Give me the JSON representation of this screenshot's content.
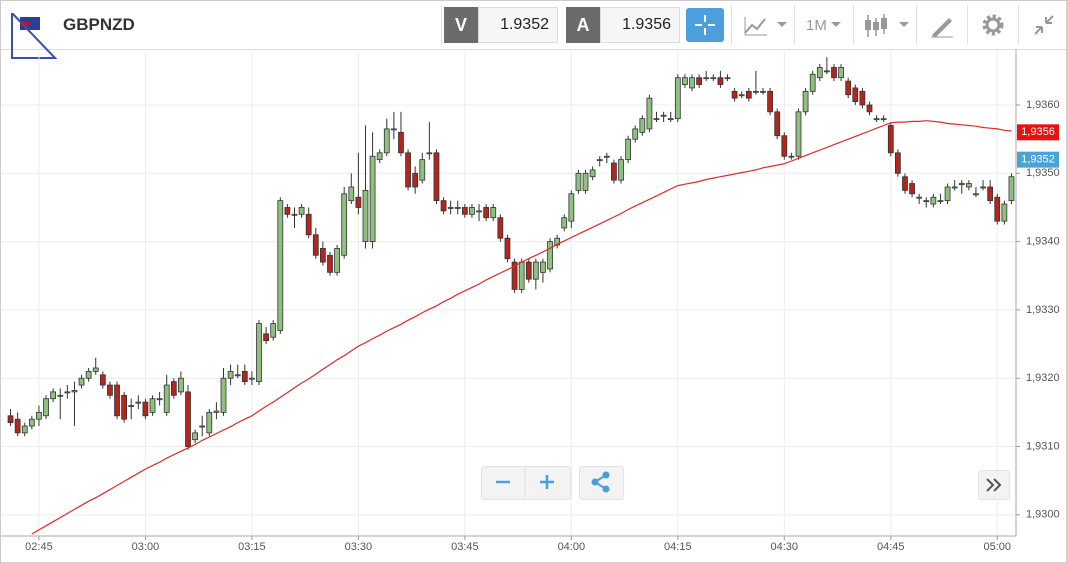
{
  "toolbar": {
    "symbol": "GBPNZD",
    "sell_label": "V",
    "sell_price": "1.9352",
    "buy_label": "A",
    "buy_price": "1.9356",
    "timeframe": "1M"
  },
  "chart_data": {
    "type": "candlestick",
    "categories": [
      null,
      null,
      null,
      null,
      "02:45",
      null,
      null,
      null,
      null,
      null,
      null,
      null,
      null,
      null,
      null,
      null,
      null,
      null,
      null,
      "03:00",
      null,
      null,
      null,
      null,
      null,
      null,
      null,
      null,
      null,
      null,
      null,
      null,
      null,
      null,
      "03:15",
      null,
      null,
      null,
      null,
      null,
      null,
      null,
      null,
      null,
      null,
      null,
      null,
      null,
      null,
      "03:30",
      null,
      null,
      null,
      null,
      null,
      null,
      null,
      null,
      null,
      null,
      null,
      null,
      null,
      null,
      "03:45",
      null,
      null,
      null,
      null,
      null,
      null,
      null,
      null,
      null,
      null,
      null,
      null,
      null,
      null,
      "04:00",
      null,
      null,
      null,
      null,
      null,
      null,
      null,
      null,
      null,
      null,
      null,
      null,
      null,
      null,
      "04:15",
      null,
      null,
      null,
      null,
      null,
      null,
      null,
      null,
      null,
      null,
      null,
      null,
      null,
      null,
      "04:30",
      null,
      null,
      null,
      null,
      null,
      null,
      null,
      null,
      null,
      null,
      null,
      null,
      null,
      null,
      "04:45",
      null,
      null,
      null,
      null,
      null,
      null,
      null,
      null,
      null,
      null,
      null,
      null,
      null,
      null,
      "05:00",
      null,
      null
    ],
    "candles": {
      "up_color": "#8fc07f",
      "down_color": "#b3261e",
      "open": [
        1.93145,
        1.9314,
        1.9312,
        1.9313,
        1.9314,
        1.93145,
        1.9317,
        1.93175,
        1.9318,
        1.9318,
        1.9319,
        1.932,
        1.9321,
        1.93205,
        1.9319,
        1.9319,
        1.93175,
        1.9316,
        1.93165,
        1.93165,
        1.9315,
        1.9317,
        1.9315,
        1.93195,
        1.9318,
        1.9318,
        1.9311,
        1.9313,
        1.9312,
        1.9315,
        1.9315,
        1.932,
        1.93205,
        1.9321,
        1.932,
        1.93195,
        1.93265,
        1.9326,
        1.9327,
        1.9345,
        1.9344,
        1.9344,
        1.9344,
        1.9341,
        1.9339,
        1.9338,
        1.93355,
        1.9338,
        1.9346,
        1.93465,
        1.934,
        1.934,
        1.9352,
        1.9353,
        1.93565,
        1.9356,
        1.9353,
        1.935,
        1.9349,
        1.9353,
        1.9353,
        1.9346,
        1.9345,
        1.9345,
        1.9345,
        1.9344,
        1.93445,
        1.9345,
        1.93435,
        1.93435,
        1.93405,
        1.9337,
        1.9333,
        1.9337,
        1.93345,
        1.93355,
        1.9336,
        1.93395,
        1.9342,
        1.9343,
        1.93475,
        1.93475,
        1.93495,
        1.9352,
        1.93525,
        1.93515,
        1.9349,
        1.9352,
        1.9355,
        1.9356,
        1.93565,
        1.9358,
        1.93585,
        1.9358,
        1.9358,
        1.9363,
        1.93625,
        1.9364,
        1.9364,
        1.9364,
        1.9364,
        1.9364,
        1.9362,
        1.93615,
        1.9362,
        1.9362,
        1.9362,
        1.9362,
        1.9359,
        1.93555,
        1.93525,
        1.93525,
        1.9359,
        1.9362,
        1.9364,
        1.9365,
        1.93655,
        1.9364,
        1.93635,
        1.93625,
        1.9362,
        1.936,
        1.9358,
        1.9358,
        1.9357,
        1.9353,
        1.93495,
        1.93485,
        1.93465,
        1.9346,
        1.93455,
        1.9346,
        1.9346,
        1.9348,
        1.93485,
        1.9348,
        1.9347,
        1.9348,
        1.9348,
        1.93465,
        1.9343,
        1.9346
      ],
      "high": [
        1.93155,
        1.9315,
        1.93135,
        1.93145,
        1.9316,
        1.93175,
        1.93185,
        1.93185,
        1.9319,
        1.93195,
        1.93205,
        1.93215,
        1.9323,
        1.9321,
        1.93195,
        1.93195,
        1.9318,
        1.9317,
        1.93175,
        1.9317,
        1.93175,
        1.9318,
        1.93205,
        1.932,
        1.9321,
        1.9319,
        1.93125,
        1.93145,
        1.93155,
        1.93165,
        1.93215,
        1.9322,
        1.9322,
        1.9322,
        1.9321,
        1.93285,
        1.93275,
        1.93285,
        1.93465,
        1.93455,
        1.9345,
        1.93455,
        1.9345,
        1.9342,
        1.934,
        1.93385,
        1.93395,
        1.9348,
        1.935,
        1.9353,
        1.9357,
        1.9356,
        1.93535,
        1.9358,
        1.9359,
        1.9359,
        1.93535,
        1.9351,
        1.9353,
        1.93575,
        1.93535,
        1.93465,
        1.9346,
        1.9346,
        1.93455,
        1.93455,
        1.93455,
        1.93455,
        1.93455,
        1.9344,
        1.9341,
        1.93375,
        1.93375,
        1.93375,
        1.93375,
        1.93375,
        1.93405,
        1.9341,
        1.9344,
        1.93475,
        1.93505,
        1.93505,
        1.9351,
        1.93525,
        1.9353,
        1.9352,
        1.93525,
        1.93555,
        1.9357,
        1.93585,
        1.93615,
        1.9359,
        1.9359,
        1.9359,
        1.93645,
        1.93645,
        1.93645,
        1.93645,
        1.9365,
        1.93645,
        1.9365,
        1.93645,
        1.93625,
        1.9362,
        1.93625,
        1.9365,
        1.93625,
        1.93625,
        1.93595,
        1.9356,
        1.9353,
        1.93595,
        1.93625,
        1.9365,
        1.9366,
        1.9367,
        1.9366,
        1.9366,
        1.9364,
        1.9363,
        1.93625,
        1.93605,
        1.93585,
        1.93585,
        1.93575,
        1.93535,
        1.935,
        1.9349,
        1.9347,
        1.93465,
        1.9347,
        1.9347,
        1.93485,
        1.9349,
        1.9349,
        1.9349,
        1.9348,
        1.9349,
        1.9349,
        1.9347,
        1.9346,
        1.935
      ],
      "low": [
        1.9313,
        1.93115,
        1.93115,
        1.93125,
        1.9313,
        1.9314,
        1.93165,
        1.9314,
        1.9317,
        1.9313,
        1.93185,
        1.93195,
        1.93205,
        1.93185,
        1.9317,
        1.9314,
        1.93135,
        1.9314,
        1.93155,
        1.9314,
        1.93145,
        1.9316,
        1.93145,
        1.9317,
        1.93175,
        1.93095,
        1.93105,
        1.93115,
        1.93115,
        1.9314,
        1.93145,
        1.9319,
        1.932,
        1.9319,
        1.9319,
        1.9319,
        1.9325,
        1.93255,
        1.93265,
        1.93435,
        1.9342,
        1.93435,
        1.93405,
        1.93375,
        1.93365,
        1.9335,
        1.9335,
        1.93375,
        1.93455,
        1.9344,
        1.9339,
        1.9339,
        1.93515,
        1.93525,
        1.9355,
        1.93525,
        1.93475,
        1.9347,
        1.93485,
        1.9352,
        1.93455,
        1.9344,
        1.9344,
        1.9344,
        1.93435,
        1.93435,
        1.9343,
        1.9343,
        1.9343,
        1.934,
        1.9337,
        1.93325,
        1.93325,
        1.9334,
        1.9333,
        1.9334,
        1.93355,
        1.9339,
        1.93415,
        1.9342,
        1.9347,
        1.9347,
        1.9349,
        1.9351,
        1.93515,
        1.93485,
        1.93485,
        1.93515,
        1.93545,
        1.93555,
        1.9356,
        1.93575,
        1.93575,
        1.93575,
        1.93575,
        1.93625,
        1.9362,
        1.93625,
        1.93635,
        1.93635,
        1.93625,
        1.93635,
        1.93605,
        1.9361,
        1.93605,
        1.93615,
        1.93615,
        1.93585,
        1.9355,
        1.9352,
        1.9352,
        1.9352,
        1.93585,
        1.93615,
        1.93635,
        1.93645,
        1.93635,
        1.93635,
        1.9361,
        1.936,
        1.93595,
        1.93585,
        1.93575,
        1.93575,
        1.93525,
        1.93495,
        1.9347,
        1.93465,
        1.93455,
        1.9345,
        1.9345,
        1.93455,
        1.93455,
        1.93475,
        1.9347,
        1.93475,
        1.93465,
        1.93475,
        1.93455,
        1.93425,
        1.93425,
        1.93455
      ],
      "close": [
        1.93135,
        1.9312,
        1.9313,
        1.9314,
        1.9315,
        1.9317,
        1.9318,
        1.93175,
        1.9318,
        1.93182,
        1.932,
        1.9321,
        1.93215,
        1.9319,
        1.93175,
        1.93145,
        1.9314,
        1.9316,
        1.93165,
        1.93145,
        1.9317,
        1.9317,
        1.9319,
        1.93175,
        1.932,
        1.931,
        1.9312,
        1.9313,
        1.9315,
        1.93152,
        1.932,
        1.9321,
        1.93205,
        1.93195,
        1.932,
        1.9328,
        1.93255,
        1.9328,
        1.9346,
        1.9344,
        1.9344,
        1.9345,
        1.9341,
        1.9338,
        1.9337,
        1.93355,
        1.9339,
        1.9347,
        1.9348,
        1.9345,
        1.93475,
        1.93525,
        1.9353,
        1.93565,
        1.93565,
        1.9353,
        1.9348,
        1.9348,
        1.9352,
        1.9353,
        1.9346,
        1.93445,
        1.9345,
        1.9345,
        1.9344,
        1.9345,
        1.93445,
        1.93435,
        1.9345,
        1.93405,
        1.93375,
        1.9333,
        1.9337,
        1.93345,
        1.9337,
        1.9337,
        1.934,
        1.93405,
        1.93435,
        1.9347,
        1.935,
        1.935,
        1.93505,
        1.9352,
        1.93525,
        1.9349,
        1.9352,
        1.9355,
        1.93565,
        1.9358,
        1.9361,
        1.9358,
        1.93585,
        1.9358,
        1.9364,
        1.9364,
        1.9364,
        1.9363,
        1.9364,
        1.9364,
        1.9363,
        1.9364,
        1.9361,
        1.93615,
        1.9361,
        1.9362,
        1.9362,
        1.9359,
        1.93555,
        1.93525,
        1.93525,
        1.9359,
        1.9362,
        1.93645,
        1.93655,
        1.9365,
        1.9364,
        1.93655,
        1.93615,
        1.93605,
        1.936,
        1.9359,
        1.9358,
        1.9358,
        1.9353,
        1.935,
        1.93475,
        1.9347,
        1.93465,
        1.9346,
        1.93465,
        1.9346,
        1.9348,
        1.9348,
        1.93485,
        1.93485,
        1.9347,
        1.9348,
        1.9346,
        1.9343,
        1.93455,
        1.93495
      ]
    },
    "moving_average": {
      "color": "#e02a2a",
      "values": [
        null,
        null,
        null,
        1.92972,
        1.92978,
        1.92984,
        1.9299,
        1.92996,
        1.93002,
        1.93008,
        1.93014,
        1.9302,
        1.93025,
        1.93031,
        1.93037,
        1.93043,
        1.93049,
        1.93055,
        1.93061,
        1.93067,
        1.93072,
        1.93077,
        1.93083,
        1.93088,
        1.93093,
        1.93098,
        1.93103,
        1.93109,
        1.93114,
        1.93119,
        1.93124,
        1.93129,
        1.93135,
        1.9314,
        1.93145,
        1.93152,
        1.93159,
        1.93165,
        1.93172,
        1.93179,
        1.93186,
        1.93193,
        1.93199,
        1.93206,
        1.93213,
        1.9322,
        1.93227,
        1.93233,
        1.9324,
        1.93247,
        1.93252,
        1.93258,
        1.93263,
        1.93269,
        1.93274,
        1.93279,
        1.93285,
        1.9329,
        1.93296,
        1.93301,
        1.93306,
        1.93312,
        1.93317,
        1.93323,
        1.93328,
        1.93333,
        1.93338,
        1.93344,
        1.93349,
        1.93354,
        1.93359,
        1.93364,
        1.9337,
        1.93375,
        1.9338,
        1.93385,
        1.9339,
        1.93396,
        1.93401,
        1.93406,
        1.93411,
        1.93416,
        1.93421,
        1.93426,
        1.93431,
        1.93436,
        1.93441,
        1.93447,
        1.93452,
        1.93457,
        1.93462,
        1.93467,
        1.93472,
        1.93477,
        1.93482,
        1.93484,
        1.93486,
        1.93488,
        1.93491,
        1.93493,
        1.93495,
        1.93497,
        1.93499,
        1.93501,
        1.93503,
        1.93505,
        1.93508,
        1.9351,
        1.93512,
        1.93514,
        1.93518,
        1.93522,
        1.93526,
        1.9353,
        1.93534,
        1.93538,
        1.93542,
        1.93546,
        1.9355,
        1.93554,
        1.93558,
        1.93562,
        1.93566,
        1.9357,
        1.93574,
        1.93575,
        1.93575,
        1.93576,
        1.93576,
        1.93577,
        1.93576,
        1.93575,
        1.93573,
        1.93572,
        1.93571,
        1.9357,
        1.93569,
        1.93567,
        1.93566,
        1.93565,
        1.93563,
        1.93562
      ]
    },
    "price_markers": [
      {
        "value": 1.9356,
        "label": "1,9356",
        "color": "#e8110f"
      },
      {
        "value": 1.9352,
        "label": "1,9352",
        "color": "#4aa3d6"
      }
    ],
    "ylim": [
      1.92969,
      1.93682
    ],
    "yticks": [
      {
        "value": 1.93,
        "label": "1,9300"
      },
      {
        "value": 1.931,
        "label": "1,9310"
      },
      {
        "value": 1.932,
        "label": "1,9320"
      },
      {
        "value": 1.933,
        "label": "1,9330"
      },
      {
        "value": 1.934,
        "label": "1,9340"
      },
      {
        "value": 1.935,
        "label": "1,9350"
      },
      {
        "value": 1.936,
        "label": "1,9360"
      }
    ],
    "grid": true
  }
}
